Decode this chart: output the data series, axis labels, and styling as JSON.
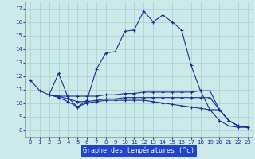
{
  "xlabel": "Graphe des températures (°c)",
  "bg_color": "#cceaea",
  "plot_bg_color": "#cceaea",
  "line_color": "#1a3090",
  "grid_color": "#aad4d4",
  "xlabel_bg": "#2244cc",
  "xlim": [
    -0.5,
    23.5
  ],
  "ylim": [
    7.5,
    17.5
  ],
  "yticks": [
    8,
    9,
    10,
    11,
    12,
    13,
    14,
    15,
    16,
    17
  ],
  "xticks": [
    0,
    1,
    2,
    3,
    4,
    5,
    6,
    7,
    8,
    9,
    10,
    11,
    12,
    13,
    14,
    15,
    16,
    17,
    18,
    19,
    20,
    21,
    22,
    23
  ],
  "line1_x": [
    0,
    1,
    2,
    3,
    4,
    5,
    6,
    7,
    8,
    9,
    10,
    11,
    12,
    13,
    14,
    15,
    16,
    17,
    18,
    19,
    20,
    21,
    22,
    23
  ],
  "line1_y": [
    11.7,
    10.9,
    10.6,
    12.2,
    10.4,
    9.7,
    10.2,
    12.5,
    13.7,
    13.8,
    15.3,
    15.4,
    16.8,
    16.0,
    16.5,
    16.0,
    15.4,
    12.8,
    10.9,
    9.5,
    8.7,
    8.3,
    8.2,
    8.2
  ],
  "line2_x": [
    2,
    3,
    4,
    5,
    6,
    7,
    8,
    9,
    10,
    11,
    12,
    13,
    14,
    15,
    16,
    17,
    18,
    19,
    20,
    21,
    22,
    23
  ],
  "line2_y": [
    10.6,
    10.5,
    10.5,
    10.5,
    10.5,
    10.5,
    10.6,
    10.6,
    10.7,
    10.7,
    10.8,
    10.8,
    10.8,
    10.8,
    10.8,
    10.8,
    10.9,
    10.9,
    9.5,
    8.7,
    8.3,
    8.2
  ],
  "line3_x": [
    2,
    3,
    4,
    5,
    6,
    7,
    8,
    9,
    10,
    11,
    12,
    13,
    14,
    15,
    16,
    17,
    18,
    19,
    20,
    21,
    22,
    23
  ],
  "line3_y": [
    10.6,
    10.5,
    10.3,
    10.1,
    10.1,
    10.2,
    10.3,
    10.3,
    10.4,
    10.4,
    10.4,
    10.4,
    10.4,
    10.4,
    10.4,
    10.4,
    10.4,
    10.4,
    9.5,
    8.7,
    8.3,
    8.2
  ],
  "line4_x": [
    2,
    3,
    4,
    5,
    6,
    7,
    8,
    9,
    10,
    11,
    12,
    13,
    14,
    15,
    16,
    17,
    18,
    19,
    20,
    21,
    22,
    23
  ],
  "line4_y": [
    10.6,
    10.4,
    10.1,
    9.7,
    10.0,
    10.1,
    10.2,
    10.2,
    10.2,
    10.2,
    10.2,
    10.1,
    10.0,
    9.9,
    9.8,
    9.7,
    9.6,
    9.5,
    9.5,
    8.7,
    8.3,
    8.2
  ]
}
